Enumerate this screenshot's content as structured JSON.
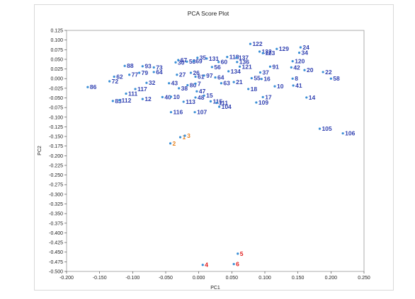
{
  "colors": {
    "default": "#2f3fb0",
    "point_default": "#3a8fd6",
    "group_orange": "#e8821e",
    "group_red": "#e01b1b",
    "axis": "#333333",
    "plot_border": "#999999"
  },
  "chart_data": {
    "type": "scatter",
    "title": "PCA Score Plot",
    "xlabel": "PC1",
    "ylabel": "PC2",
    "xlim": [
      -0.2,
      0.25
    ],
    "ylim": [
      -0.5,
      0.125
    ],
    "grid": false,
    "legend": "none",
    "x_ticks": [
      "-0.200",
      "-0.150",
      "-0.100",
      "-0.050",
      "0.000",
      "0.050",
      "0.100",
      "0.150",
      "0.200",
      "0.250"
    ],
    "x_tick_values": [
      -0.2,
      -0.15,
      -0.1,
      -0.05,
      0.0,
      0.05,
      0.1,
      0.15,
      0.2,
      0.25
    ],
    "y_ticks": [
      "0.125",
      "0.100",
      "0.075",
      "0.050",
      "0.025",
      "0.000",
      "-0.025",
      "-0.050",
      "-0.075",
      "-0.100",
      "-0.125",
      "-0.150",
      "-0.175",
      "-0.200",
      "-0.225",
      "-0.250",
      "-0.275",
      "-0.300",
      "-0.325",
      "-0.350",
      "-0.375",
      "-0.400",
      "-0.425",
      "-0.450",
      "-0.475",
      "-0.500"
    ],
    "y_tick_values": [
      0.125,
      0.1,
      0.075,
      0.05,
      0.025,
      0.0,
      -0.025,
      -0.05,
      -0.075,
      -0.1,
      -0.125,
      -0.15,
      -0.175,
      -0.2,
      -0.225,
      -0.25,
      -0.275,
      -0.3,
      -0.325,
      -0.35,
      -0.375,
      -0.4,
      -0.425,
      -0.45,
      -0.475,
      -0.5
    ],
    "points": [
      {
        "label": "1",
        "x": -0.028,
        "y": -0.152,
        "group": "orange"
      },
      {
        "label": "3",
        "x": -0.021,
        "y": -0.148,
        "group": "orange"
      },
      {
        "label": "2",
        "x": -0.043,
        "y": -0.168,
        "group": "orange"
      },
      {
        "label": "4",
        "x": 0.006,
        "y": -0.483,
        "group": "red"
      },
      {
        "label": "6",
        "x": 0.053,
        "y": -0.481,
        "group": "red"
      },
      {
        "label": "5",
        "x": 0.059,
        "y": -0.454,
        "group": "red"
      },
      {
        "label": "86",
        "x": -0.168,
        "y": -0.022,
        "group": "default"
      },
      {
        "label": "83",
        "x": -0.13,
        "y": -0.058,
        "group": "default"
      },
      {
        "label": "112",
        "x": -0.12,
        "y": -0.056,
        "group": "default"
      },
      {
        "label": "111",
        "x": -0.11,
        "y": -0.039,
        "group": "default"
      },
      {
        "label": "12",
        "x": -0.085,
        "y": -0.053,
        "group": "default"
      },
      {
        "label": "117",
        "x": -0.096,
        "y": -0.027,
        "group": "default"
      },
      {
        "label": "72",
        "x": -0.135,
        "y": -0.007,
        "group": "default"
      },
      {
        "label": "62",
        "x": -0.128,
        "y": 0.005,
        "group": "default"
      },
      {
        "label": "88",
        "x": -0.112,
        "y": 0.033,
        "group": "default"
      },
      {
        "label": "93",
        "x": -0.085,
        "y": 0.032,
        "group": "default"
      },
      {
        "label": "73",
        "x": -0.068,
        "y": 0.029,
        "group": "default"
      },
      {
        "label": "79",
        "x": -0.09,
        "y": 0.015,
        "group": "default"
      },
      {
        "label": "77",
        "x": -0.105,
        "y": 0.01,
        "group": "default"
      },
      {
        "label": "64",
        "x": -0.068,
        "y": 0.017,
        "group": "default"
      },
      {
        "label": "32",
        "x": -0.079,
        "y": -0.011,
        "group": "default"
      },
      {
        "label": "43",
        "x": -0.045,
        "y": -0.012,
        "group": "default"
      },
      {
        "label": "40",
        "x": -0.055,
        "y": -0.048,
        "group": "default"
      },
      {
        "label": "10",
        "x": -0.042,
        "y": -0.047,
        "group": "default"
      },
      {
        "label": "116",
        "x": -0.042,
        "y": -0.087,
        "group": "default"
      },
      {
        "label": "30",
        "x": -0.035,
        "y": 0.042,
        "group": "default"
      },
      {
        "label": "67",
        "x": -0.031,
        "y": 0.048,
        "group": "default"
      },
      {
        "label": "53",
        "x": -0.018,
        "y": 0.044,
        "group": "default"
      },
      {
        "label": "69",
        "x": -0.008,
        "y": 0.045,
        "group": "default"
      },
      {
        "label": "35",
        "x": -0.002,
        "y": 0.054,
        "group": "default"
      },
      {
        "label": "131",
        "x": 0.012,
        "y": 0.052,
        "group": "default"
      },
      {
        "label": "27",
        "x": -0.033,
        "y": 0.01,
        "group": "default"
      },
      {
        "label": "26",
        "x": -0.012,
        "y": 0.015,
        "group": "default"
      },
      {
        "label": "61",
        "x": -0.005,
        "y": 0.005,
        "group": "default"
      },
      {
        "label": "97",
        "x": 0.008,
        "y": 0.008,
        "group": "default"
      },
      {
        "label": "38",
        "x": -0.03,
        "y": -0.025,
        "group": "default"
      },
      {
        "label": "80",
        "x": -0.017,
        "y": -0.017,
        "group": "default"
      },
      {
        "label": "7",
        "x": -0.005,
        "y": -0.013,
        "group": "default"
      },
      {
        "label": "47",
        "x": -0.003,
        "y": -0.033,
        "group": "default"
      },
      {
        "label": "113",
        "x": -0.023,
        "y": -0.06,
        "group": "default"
      },
      {
        "label": "48",
        "x": -0.005,
        "y": -0.049,
        "group": "default"
      },
      {
        "label": "15",
        "x": 0.008,
        "y": -0.044,
        "group": "default"
      },
      {
        "label": "107",
        "x": -0.006,
        "y": -0.087,
        "group": "default"
      },
      {
        "label": "115",
        "x": 0.018,
        "y": -0.059,
        "group": "default"
      },
      {
        "label": "111",
        "x": 0.027,
        "y": -0.063,
        "group": "default"
      },
      {
        "label": "104",
        "x": 0.031,
        "y": -0.073,
        "group": "default"
      },
      {
        "label": "60",
        "x": 0.03,
        "y": 0.043,
        "group": "default"
      },
      {
        "label": "56",
        "x": 0.02,
        "y": 0.03,
        "group": "default"
      },
      {
        "label": "118",
        "x": 0.043,
        "y": 0.056,
        "group": "default"
      },
      {
        "label": "137",
        "x": 0.057,
        "y": 0.054,
        "group": "default"
      },
      {
        "label": "136",
        "x": 0.058,
        "y": 0.043,
        "group": "default"
      },
      {
        "label": "121",
        "x": 0.062,
        "y": 0.031,
        "group": "default"
      },
      {
        "label": "134",
        "x": 0.045,
        "y": 0.019,
        "group": "default"
      },
      {
        "label": "64",
        "x": 0.025,
        "y": 0.003,
        "group": "default"
      },
      {
        "label": "63",
        "x": 0.034,
        "y": -0.012,
        "group": "default"
      },
      {
        "label": "21",
        "x": 0.053,
        "y": -0.009,
        "group": "default"
      },
      {
        "label": "122",
        "x": 0.078,
        "y": 0.09,
        "group": "default"
      },
      {
        "label": "132",
        "x": 0.092,
        "y": 0.07,
        "group": "default"
      },
      {
        "label": "123",
        "x": 0.097,
        "y": 0.066,
        "group": "default"
      },
      {
        "label": "129",
        "x": 0.118,
        "y": 0.077,
        "group": "default"
      },
      {
        "label": "91",
        "x": 0.108,
        "y": 0.031,
        "group": "default"
      },
      {
        "label": "37",
        "x": 0.093,
        "y": 0.016,
        "group": "default"
      },
      {
        "label": "55",
        "x": 0.08,
        "y": 0.001,
        "group": "default"
      },
      {
        "label": "16",
        "x": 0.095,
        "y": -0.001,
        "group": "default"
      },
      {
        "label": "18",
        "x": 0.075,
        "y": -0.027,
        "group": "default"
      },
      {
        "label": "17",
        "x": 0.097,
        "y": -0.048,
        "group": "default"
      },
      {
        "label": "109",
        "x": 0.087,
        "y": -0.062,
        "group": "default"
      },
      {
        "label": "10",
        "x": 0.115,
        "y": -0.02,
        "group": "default"
      },
      {
        "label": "24",
        "x": 0.154,
        "y": 0.081,
        "group": "default"
      },
      {
        "label": "34",
        "x": 0.152,
        "y": 0.067,
        "group": "default"
      },
      {
        "label": "120",
        "x": 0.142,
        "y": 0.045,
        "group": "default"
      },
      {
        "label": "42",
        "x": 0.14,
        "y": 0.029,
        "group": "default"
      },
      {
        "label": "20",
        "x": 0.16,
        "y": 0.022,
        "group": "default"
      },
      {
        "label": "8",
        "x": 0.142,
        "y": 0.0,
        "group": "default"
      },
      {
        "label": "41",
        "x": 0.143,
        "y": -0.018,
        "group": "default"
      },
      {
        "label": "22",
        "x": 0.188,
        "y": 0.017,
        "group": "default"
      },
      {
        "label": "58",
        "x": 0.2,
        "y": 0.0,
        "group": "default"
      },
      {
        "label": "14",
        "x": 0.163,
        "y": -0.049,
        "group": "default"
      },
      {
        "label": "105",
        "x": 0.183,
        "y": -0.13,
        "group": "default"
      },
      {
        "label": "106",
        "x": 0.218,
        "y": -0.142,
        "group": "default"
      }
    ]
  }
}
